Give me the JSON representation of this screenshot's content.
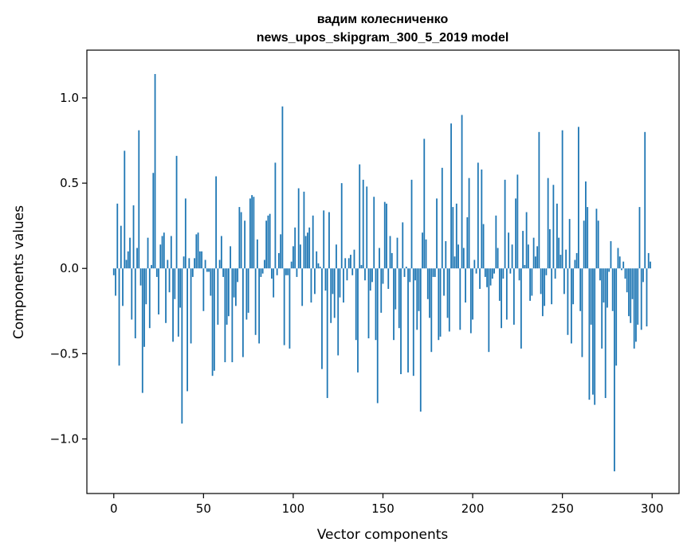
{
  "chart_data": {
    "type": "bar",
    "title": [
      "вадим колесниченко",
      "news_upos_skipgram_300_5_2019 model"
    ],
    "xlabel": "Vector components",
    "ylabel": "Components values",
    "xlim": [
      -15,
      315
    ],
    "ylim": [
      -1.32,
      1.28
    ],
    "xticks": [
      0,
      50,
      100,
      150,
      200,
      250,
      300
    ],
    "xtick_labels": [
      "0",
      "50",
      "100",
      "150",
      "200",
      "250",
      "300"
    ],
    "yticks": [
      -1.0,
      -0.5,
      0.0,
      0.5,
      1.0
    ],
    "ytick_labels": [
      "−1.0",
      "−0.5",
      "0.0",
      "0.5",
      "1.0"
    ],
    "grid": false,
    "bar_color": "#1f77b4",
    "values": [
      -0.04,
      -0.16,
      0.38,
      -0.57,
      0.25,
      -0.22,
      0.69,
      0.05,
      0.1,
      0.18,
      -0.3,
      0.37,
      -0.41,
      0.12,
      0.81,
      -0.1,
      -0.73,
      -0.46,
      -0.21,
      0.18,
      -0.35,
      0.02,
      0.56,
      1.14,
      -0.05,
      -0.27,
      0.14,
      0.19,
      0.21,
      -0.32,
      0.05,
      -0.14,
      0.19,
      -0.43,
      -0.18,
      0.66,
      -0.4,
      -0.23,
      -0.91,
      0.07,
      0.41,
      -0.72,
      0.06,
      -0.44,
      -0.05,
      0.06,
      0.2,
      0.21,
      0.1,
      0.1,
      -0.25,
      0.05,
      -0.02,
      -0.02,
      -0.16,
      -0.63,
      -0.6,
      0.54,
      -0.33,
      0.05,
      0.19,
      -0.05,
      -0.55,
      -0.33,
      -0.28,
      0.13,
      -0.55,
      -0.17,
      -0.22,
      -0.08,
      0.36,
      0.33,
      -0.52,
      0.28,
      -0.3,
      -0.26,
      0.41,
      0.43,
      0.42,
      -0.39,
      0.17,
      -0.44,
      -0.05,
      -0.03,
      0.05,
      0.28,
      0.31,
      0.32,
      -0.06,
      -0.17,
      0.62,
      -0.04,
      0.09,
      0.2,
      0.95,
      -0.45,
      -0.04,
      -0.04,
      -0.47,
      0.04,
      0.13,
      0.24,
      -0.05,
      0.47,
      0.14,
      -0.22,
      0.45,
      0.19,
      0.21,
      0.24,
      -0.2,
      0.31,
      -0.15,
      0.1,
      0.03,
      0.01,
      -0.59,
      0.34,
      -0.13,
      -0.76,
      0.33,
      -0.32,
      -0.15,
      -0.29,
      0.14,
      -0.51,
      -0.17,
      0.5,
      -0.2,
      0.06,
      -0.07,
      0.06,
      0.08,
      -0.04,
      0.11,
      -0.42,
      -0.61,
      0.61,
      0.02,
      0.52,
      -0.07,
      0.48,
      -0.41,
      -0.13,
      -0.08,
      0.42,
      -0.42,
      -0.79,
      0.12,
      -0.26,
      -0.09,
      0.39,
      0.38,
      -0.12,
      0.19,
      0.09,
      -0.42,
      -0.24,
      0.18,
      -0.35,
      -0.62,
      0.27,
      -0.05,
      0.01,
      -0.61,
      -0.08,
      0.52,
      -0.63,
      -0.07,
      -0.36,
      -0.25,
      -0.84,
      0.21,
      0.76,
      0.17,
      -0.18,
      -0.29,
      -0.49,
      -0.05,
      -0.05,
      0.41,
      -0.42,
      -0.4,
      0.59,
      -0.16,
      0.16,
      -0.29,
      -0.37,
      0.85,
      0.36,
      0.07,
      0.38,
      0.14,
      -0.36,
      0.9,
      0.12,
      -0.2,
      0.3,
      0.53,
      -0.38,
      -0.3,
      0.05,
      -0.03,
      0.62,
      -0.12,
      0.58,
      0.26,
      -0.05,
      -0.11,
      -0.49,
      -0.1,
      -0.06,
      -0.03,
      0.31,
      0.12,
      -0.19,
      -0.35,
      -0.06,
      0.52,
      -0.3,
      0.21,
      -0.03,
      0.14,
      -0.33,
      0.41,
      0.55,
      -0.07,
      -0.47,
      0.22,
      0.02,
      0.33,
      0.14,
      -0.19,
      -0.16,
      0.18,
      0.07,
      0.13,
      0.8,
      -0.15,
      -0.28,
      -0.22,
      -0.04,
      0.53,
      0.23,
      -0.21,
      0.49,
      -0.06,
      0.38,
      0.18,
      0.08,
      0.81,
      -0.15,
      0.11,
      -0.39,
      0.29,
      -0.44,
      -0.21,
      0.05,
      0.09,
      0.83,
      -0.25,
      -0.52,
      0.28,
      0.51,
      0.36,
      -0.77,
      -0.33,
      -0.74,
      -0.8,
      0.35,
      0.28,
      -0.07,
      -0.47,
      -0.2,
      -0.76,
      -0.23,
      -0.02,
      0.16,
      -0.25,
      -1.19,
      -0.57,
      0.12,
      0.07,
      -0.01,
      0.04,
      -0.06,
      -0.14,
      -0.28,
      -0.32,
      -0.18,
      -0.47,
      -0.43,
      -0.33,
      0.36,
      -0.36,
      -0.08,
      0.8,
      -0.34,
      0.09,
      0.04
    ]
  }
}
